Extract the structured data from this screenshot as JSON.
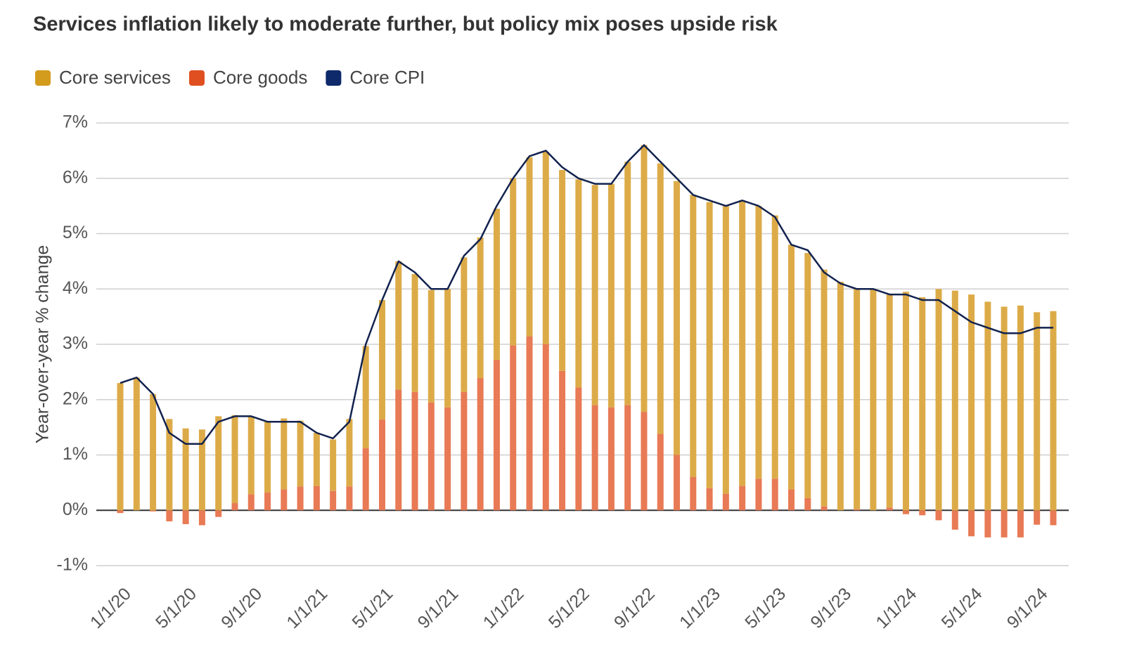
{
  "chart_data": {
    "type": "stacked_bar_line",
    "title": "Services inflation likely to moderate further, but policy mix poses upside risk",
    "y_label": "Year-over-year % change",
    "categories": [
      "1/1/20",
      null,
      null,
      null,
      "5/1/20",
      null,
      null,
      null,
      "9/1/20",
      null,
      null,
      null,
      "1/1/21",
      null,
      null,
      null,
      "5/1/21",
      null,
      null,
      null,
      "9/1/21",
      null,
      null,
      null,
      "1/1/22",
      null,
      null,
      null,
      "5/1/22",
      null,
      null,
      null,
      "9/1/22",
      null,
      null,
      null,
      "1/1/23",
      null,
      null,
      null,
      "5/1/23",
      null,
      null,
      null,
      "9/1/23",
      null,
      null,
      null,
      "1/1/24",
      null,
      null,
      null,
      "5/1/24",
      null,
      null,
      null,
      "9/1/24",
      null
    ],
    "series": [
      {
        "name": "Core services",
        "kind": "bar",
        "color": "#dcab48",
        "values": [
          2.3,
          2.4,
          2.1,
          1.65,
          1.48,
          1.46,
          1.7,
          1.59,
          1.41,
          1.28,
          1.28,
          1.19,
          0.96,
          0.93,
          1.22,
          1.85,
          2.16,
          2.32,
          2.13,
          2.03,
          2.14,
          2.43,
          2.54,
          2.73,
          3.02,
          3.24,
          3.48,
          3.63,
          3.76,
          3.98,
          4.04,
          4.4,
          4.82,
          4.89,
          4.95,
          5.1,
          5.17,
          5.2,
          5.16,
          4.93,
          4.76,
          4.42,
          4.43,
          4.28,
          4.13,
          3.98,
          4.0,
          3.85,
          3.95,
          3.85,
          4.0,
          3.97,
          3.9,
          3.77,
          3.68,
          3.7,
          3.58,
          3.6
        ]
      },
      {
        "name": "Core goods",
        "kind": "bar",
        "color": "#e87a55",
        "values": [
          -0.05,
          0,
          -0.02,
          -0.2,
          -0.25,
          -0.27,
          -0.12,
          0.13,
          0.29,
          0.32,
          0.38,
          0.43,
          0.44,
          0.35,
          0.43,
          1.12,
          1.64,
          2.18,
          2.14,
          1.95,
          1.86,
          2.14,
          2.39,
          2.72,
          2.98,
          3.14,
          3.0,
          2.52,
          2.22,
          1.9,
          1.86,
          1.9,
          1.78,
          1.38,
          1.0,
          0.6,
          0.4,
          0.3,
          0.44,
          0.57,
          0.57,
          0.38,
          0.22,
          0.07,
          0,
          0.02,
          0,
          0.05,
          -0.07,
          -0.09,
          -0.18,
          -0.35,
          -0.47,
          -0.49,
          -0.49,
          -0.49,
          -0.26,
          -0.27
        ]
      },
      {
        "name": "Core CPI",
        "kind": "line",
        "color": "#12224f",
        "values": [
          2.3,
          2.4,
          2.1,
          1.4,
          1.2,
          1.2,
          1.6,
          1.7,
          1.7,
          1.6,
          1.6,
          1.6,
          1.4,
          1.3,
          1.6,
          3.0,
          3.8,
          4.5,
          4.3,
          4.0,
          4.0,
          4.6,
          4.9,
          5.5,
          6.0,
          6.4,
          6.5,
          6.2,
          6.0,
          5.9,
          5.9,
          6.3,
          6.6,
          6.3,
          6.0,
          5.7,
          5.6,
          5.5,
          5.6,
          5.5,
          5.3,
          4.8,
          4.7,
          4.3,
          4.1,
          4.0,
          4.0,
          3.9,
          3.9,
          3.8,
          3.8,
          3.6,
          3.4,
          3.3,
          3.2,
          3.2,
          3.3,
          3.3
        ]
      }
    ],
    "legend_colors": [
      "#d49c1c",
      "#df4f20",
      "#0f2a6b"
    ],
    "ylim": [
      -1,
      7
    ],
    "yticks": [
      {
        "value": -1,
        "label": "-1%"
      },
      {
        "value": 0,
        "label": "0%"
      },
      {
        "value": 1,
        "label": "1%"
      },
      {
        "value": 2,
        "label": "2%"
      },
      {
        "value": 3,
        "label": "3%"
      },
      {
        "value": 4,
        "label": "4%"
      },
      {
        "value": 5,
        "label": "5%"
      },
      {
        "value": 6,
        "label": "6%"
      },
      {
        "value": 7,
        "label": "7%"
      }
    ],
    "grid": true,
    "legend": "top-left"
  }
}
